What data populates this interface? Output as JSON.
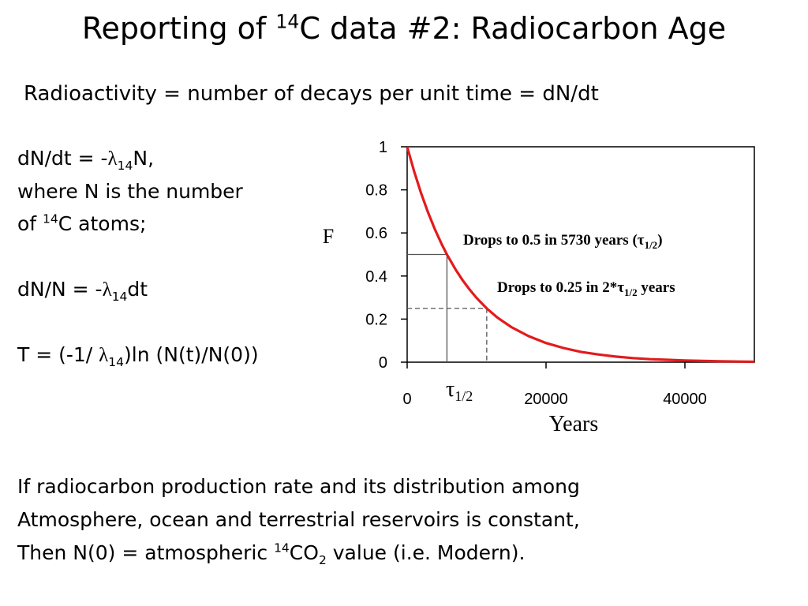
{
  "slide": {
    "title_pre": "Reporting of ",
    "title_sup": "14",
    "title_post": "C data #2: Radiocarbon Age",
    "subtitle": "Radioactivity = number of decays per unit time = dN/dt"
  },
  "equations": {
    "eq1_pre": "dN/dt = -",
    "eq1_lambda": "λ",
    "eq1_sub": "14",
    "eq1_post": "N,",
    "line2": "where N is the number",
    "line3_pre": "of ",
    "line3_sup": "14",
    "line3_post": "C atoms;",
    "eq2_pre": "dN/N =  -",
    "eq2_lambda": "λ",
    "eq2_sub": "14",
    "eq2_post": "dt",
    "eq3_pre": "T = (-1/ ",
    "eq3_lambda": "λ",
    "eq3_sub": "14",
    "eq3_post": ")ln (N(t)/N(0))"
  },
  "bottom_text": {
    "line1": "If radiocarbon production rate and its distribution among",
    "line2": "Atmosphere, ocean and terrestrial reservoirs is constant,",
    "line3_pre": "Then N(0) = atmospheric ",
    "line3_sup": "14",
    "line3_mid": "CO",
    "line3_sub": "2",
    "line3_post": " value (i.e. Modern)."
  },
  "chart_data": {
    "type": "line",
    "title": "",
    "xlabel": "Years",
    "ylabel": "F",
    "xlim": [
      0,
      50000
    ],
    "ylim": [
      0,
      1
    ],
    "x_ticks": [
      0,
      20000,
      40000
    ],
    "x_tick_labels": [
      "0",
      "20000",
      "40000"
    ],
    "y_ticks": [
      0,
      0.2,
      0.4,
      0.6,
      0.8,
      1
    ],
    "y_tick_labels": [
      "0",
      "0.2",
      "0.4",
      "0.6",
      "0.8",
      "1"
    ],
    "grid": false,
    "series": [
      {
        "color": "#e31a1c",
        "x": [
          0,
          1000,
          2000,
          3000,
          4000,
          5000,
          5730,
          7000,
          8000,
          9000,
          10000,
          11460,
          13000,
          15000,
          17500,
          20000,
          22500,
          25000,
          27500,
          30000,
          32500,
          35000,
          37500,
          40000,
          42500,
          45000,
          47500,
          50000
        ],
        "y": [
          1.0,
          0.886,
          0.785,
          0.696,
          0.616,
          0.546,
          0.5,
          0.429,
          0.38,
          0.337,
          0.298,
          0.25,
          0.207,
          0.163,
          0.121,
          0.089,
          0.066,
          0.048,
          0.036,
          0.026,
          0.019,
          0.014,
          0.011,
          0.008,
          0.006,
          0.004,
          0.003,
          0.002
        ]
      }
    ],
    "markers": [
      {
        "x": 5730,
        "y": 0.5,
        "style": "solid"
      },
      {
        "x": 11460,
        "y": 0.25,
        "style": "dashed"
      }
    ],
    "annotations": {
      "half_pre": "Drops to 0.5 in 5730 years (",
      "half_tau": "τ",
      "half_sub": "1/2",
      "half_post": ")",
      "quarter_pre": "Drops to 0.25 in 2*",
      "quarter_tau": "τ",
      "quarter_sub": "1/2",
      "quarter_post": " years",
      "tau_label": "τ",
      "tau_sub": "1/2"
    },
    "colors": {
      "curve": "#e31a1c",
      "axes": "#000000",
      "guides": "#555555"
    }
  }
}
